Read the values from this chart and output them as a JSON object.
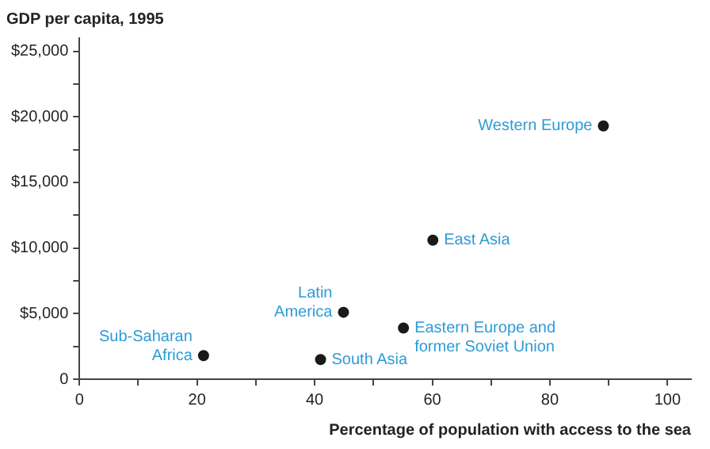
{
  "chart_data": {
    "type": "scatter",
    "title": "GDP per capita, 1995",
    "xlabel": "Percentage of population with access to the sea",
    "x": [
      89.1,
      60.1,
      44.9,
      55.1,
      41.0,
      21.1
    ],
    "series": [
      {
        "color": "#1a1a1a",
        "values": [
          19300,
          10600,
          5100,
          3900,
          1500,
          1800
        ]
      }
    ],
    "xlim": [
      0,
      104
    ],
    "xticks": [
      0,
      {
        "value": 10,
        "label": null
      },
      20,
      {
        "value": 30,
        "label": null
      },
      40,
      {
        "value": 50,
        "label": null
      },
      60,
      {
        "value": 70,
        "label": null
      },
      80,
      {
        "value": 90,
        "label": null
      },
      100
    ],
    "ylim": [
      0,
      26000
    ],
    "yticks": [
      {
        "value": 0,
        "label": "0"
      },
      {
        "value": 2500,
        "label": null
      },
      {
        "value": 5000,
        "label": "$5,000"
      },
      {
        "value": 7500,
        "label": null
      },
      {
        "value": 10000,
        "label": "$10,000"
      },
      {
        "value": 12500,
        "label": null
      },
      {
        "value": 15000,
        "label": "$15,000"
      },
      {
        "value": 17500,
        "label": null
      },
      {
        "value": 20000,
        "label": "$20,000"
      },
      {
        "value": 22500,
        "label": null
      },
      {
        "value": 25000,
        "label": "$25,000"
      }
    ],
    "marker": "circle",
    "grid": false,
    "legend": false,
    "annotations": [
      {
        "text": "Western Europe",
        "x": 89.1,
        "y": 19300
      },
      {
        "text": "East Asia",
        "x": 60.1,
        "y": 10600
      },
      {
        "text": "Latin\nAmerica",
        "x": 44.9,
        "y": 5100
      },
      {
        "text": "Eastern Europe and\nformer Soviet Union",
        "x": 55.1,
        "y": 3900
      },
      {
        "text": "South Asia",
        "x": 41.0,
        "y": 1500
      },
      {
        "text": "Sub-Saharan\nAfrica",
        "x": 21.1,
        "y": 1800
      }
    ]
  }
}
